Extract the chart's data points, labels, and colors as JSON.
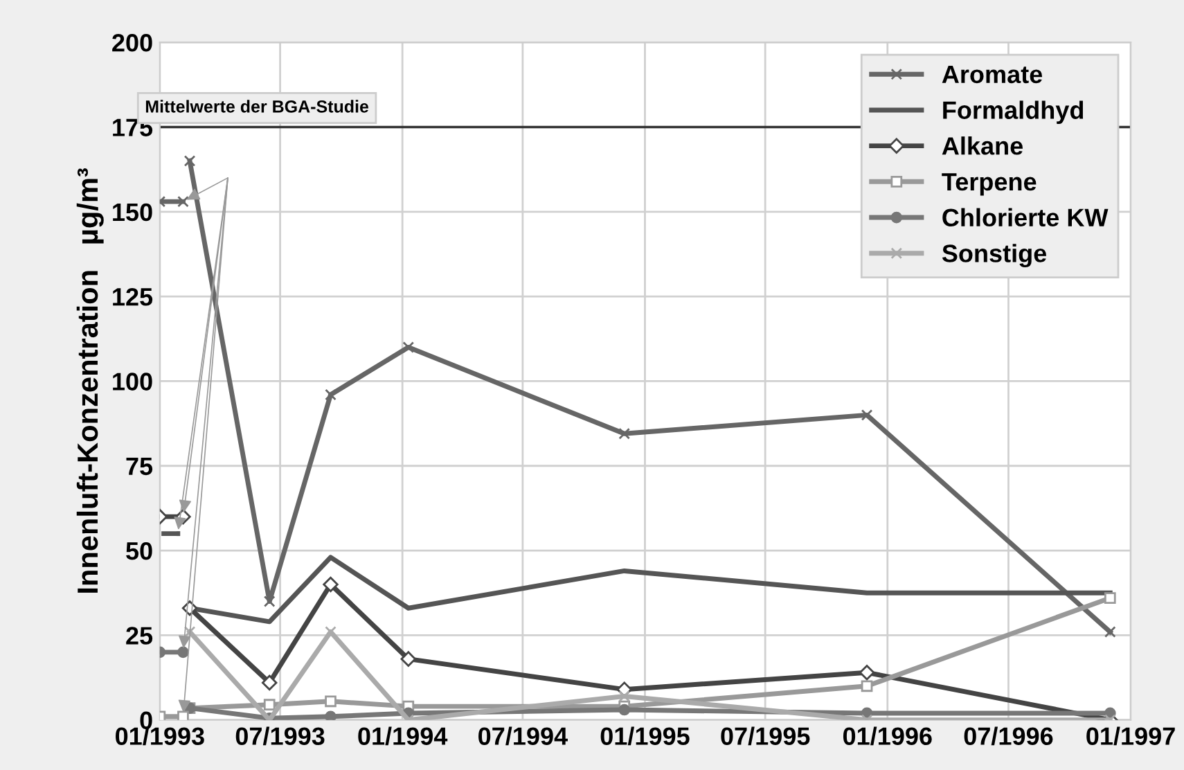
{
  "chart_data": {
    "type": "line",
    "ylabel": "Innenluft-Konzentration   µg/m³",
    "x": [
      "1993-02-15",
      "1993-06-15",
      "1993-09-15",
      "1994-01-10",
      "1994-12-01",
      "1995-12-01",
      "1996-12-01"
    ],
    "series": [
      {
        "name": "Aromate",
        "color": "#666666",
        "marker": "cross",
        "values": [
          165,
          35,
          96,
          110,
          84.5,
          90,
          26
        ]
      },
      {
        "name": "Formaldhyd",
        "color": "#555555",
        "marker": "none",
        "values": [
          33,
          29,
          48,
          33,
          44,
          37.5,
          37.5
        ]
      },
      {
        "name": "Alkane",
        "color": "#444444",
        "marker": "diamond",
        "values": [
          33,
          11,
          40,
          18,
          9,
          14,
          0
        ]
      },
      {
        "name": "Terpene",
        "color": "#999999",
        "marker": "square",
        "values": [
          3.5,
          4.5,
          5.5,
          4,
          4,
          10,
          36
        ]
      },
      {
        "name": "Chlorierte KW",
        "color": "#777777",
        "marker": "circle",
        "values": [
          3.5,
          0.5,
          1,
          2,
          3,
          2,
          2
        ]
      },
      {
        "name": "Sonstige",
        "color": "#aaaaaa",
        "marker": "cross",
        "values": [
          26,
          0,
          26,
          0,
          7,
          0,
          0
        ]
      },
      {
        "color": "#666666",
        "marker": "cross",
        "x": [
          "1993-01-01",
          "1993-02-05"
        ],
        "values": [
          153,
          153
        ]
      },
      {
        "color": "#444444",
        "marker": "diamond",
        "x": [
          "1993-01-01",
          "1993-02-05"
        ],
        "values": [
          60,
          60
        ]
      },
      {
        "color": "#555555",
        "marker": "none",
        "x": [
          "1993-01-07",
          "1993-01-28"
        ],
        "values": [
          55,
          55
        ]
      },
      {
        "color": "#777777",
        "marker": "circle",
        "x": [
          "1993-01-01",
          "1993-02-05"
        ],
        "values": [
          20,
          20
        ]
      },
      {
        "color": "#999999",
        "marker": "square",
        "x": [
          "1993-01-01",
          "1993-02-05"
        ],
        "values": [
          1,
          1
        ]
      }
    ],
    "annotations": [
      "Mittelwerte der BGA-Studie"
    ],
    "ref_lines": [
      {
        "axis": "y",
        "value": 175,
        "color": "#333333"
      }
    ],
    "xlim": [
      "1993-01-01",
      "1997-01-01"
    ],
    "xticks": [
      {
        "value": "1993-01-01",
        "label": "01/1993"
      },
      {
        "value": "1993-07-01",
        "label": "07/1993"
      },
      {
        "value": "1994-01-01",
        "label": "01/1994"
      },
      {
        "value": "1994-07-01",
        "label": "07/1994"
      },
      {
        "value": "1995-01-01",
        "label": "01/1995"
      },
      {
        "value": "1995-07-01",
        "label": "07/1995"
      },
      {
        "value": "1996-01-01",
        "label": "01/1996"
      },
      {
        "value": "1996-07-01",
        "label": "07/1996"
      },
      {
        "value": "1997-01-01",
        "label": "01/1997"
      }
    ],
    "ylim": [
      0,
      200
    ],
    "yticks": [
      0,
      25,
      50,
      75,
      100,
      125,
      150,
      175,
      200
    ],
    "grid": true,
    "legend": "top right"
  }
}
